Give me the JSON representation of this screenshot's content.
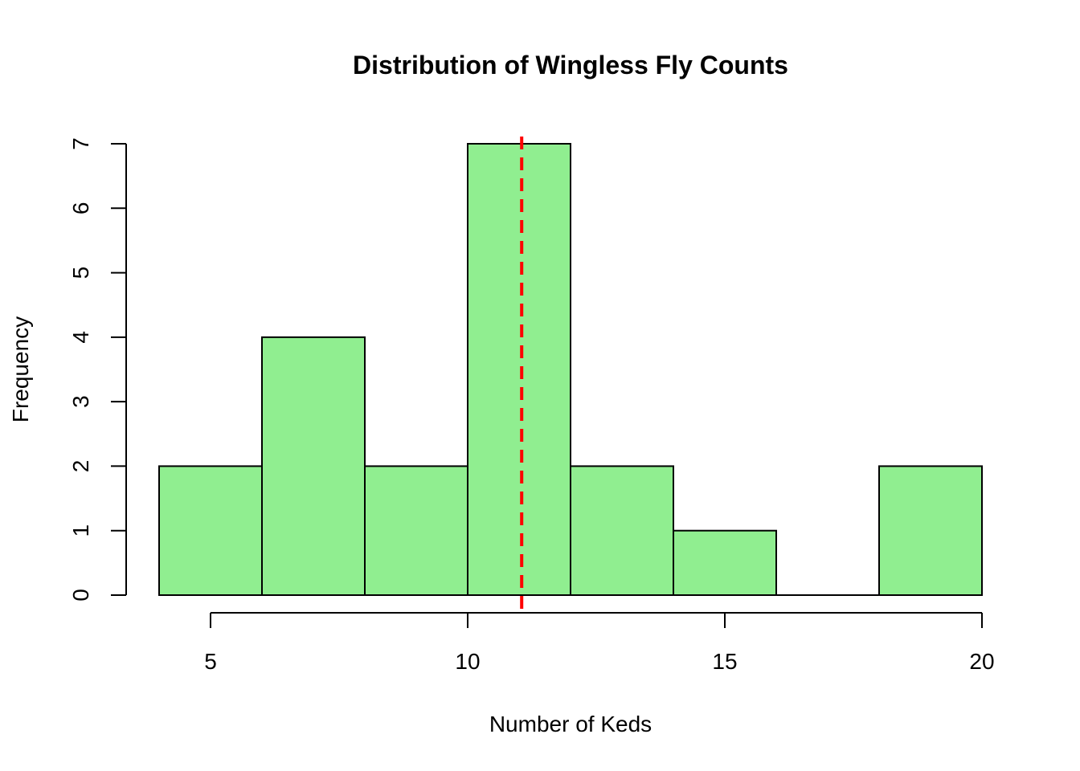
{
  "chart_data": {
    "type": "bar",
    "title": "Distribution of Wingless Fly Counts",
    "xlabel": "Number of Keds",
    "ylabel": "Frequency",
    "bins": [
      {
        "from": 4,
        "to": 6,
        "count": 2
      },
      {
        "from": 6,
        "to": 8,
        "count": 4
      },
      {
        "from": 8,
        "to": 10,
        "count": 2
      },
      {
        "from": 10,
        "to": 12,
        "count": 7
      },
      {
        "from": 12,
        "to": 14,
        "count": 2
      },
      {
        "from": 14,
        "to": 16,
        "count": 1
      },
      {
        "from": 16,
        "to": 18,
        "count": 0
      },
      {
        "from": 18,
        "to": 20,
        "count": 2
      }
    ],
    "x_ticks": [
      5,
      10,
      15,
      20
    ],
    "y_ticks": [
      0,
      1,
      2,
      3,
      4,
      5,
      6,
      7
    ],
    "xlim": [
      4,
      20
    ],
    "ylim": [
      0,
      7
    ],
    "reference_line": {
      "x": 11.05,
      "style": "dashed",
      "color": "#ff0000"
    },
    "bar_color": "#90ee90",
    "bar_edge_color": "#000000",
    "grid": false
  }
}
